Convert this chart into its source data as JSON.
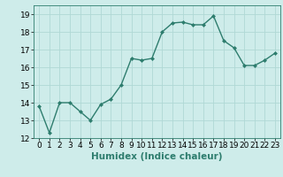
{
  "x": [
    0,
    1,
    2,
    3,
    4,
    5,
    6,
    7,
    8,
    9,
    10,
    11,
    12,
    13,
    14,
    15,
    16,
    17,
    18,
    19,
    20,
    21,
    22,
    23
  ],
  "y": [
    13.8,
    12.3,
    14.0,
    14.0,
    13.5,
    13.0,
    13.9,
    14.2,
    15.0,
    16.5,
    16.4,
    16.5,
    18.0,
    18.5,
    18.55,
    18.4,
    18.4,
    18.9,
    17.5,
    17.1,
    16.1,
    16.1,
    16.4,
    16.8
  ],
  "line_color": "#2e7d6e",
  "marker": "D",
  "marker_size": 2,
  "line_width": 1.0,
  "xlabel": "Humidex (Indice chaleur)",
  "xlim": [
    -0.5,
    23.5
  ],
  "ylim": [
    12,
    19.5
  ],
  "yticks": [
    12,
    13,
    14,
    15,
    16,
    17,
    18,
    19
  ],
  "xtick_labels": [
    "0",
    "1",
    "2",
    "3",
    "4",
    "5",
    "6",
    "7",
    "8",
    "9",
    "10",
    "11",
    "12",
    "13",
    "14",
    "15",
    "16",
    "17",
    "18",
    "19",
    "20",
    "21",
    "22",
    "23"
  ],
  "bg_color": "#ceecea",
  "grid_color": "#b0d8d5",
  "tick_font_size": 6.5,
  "xlabel_fontsize": 7.5,
  "xlabel_bold": true
}
